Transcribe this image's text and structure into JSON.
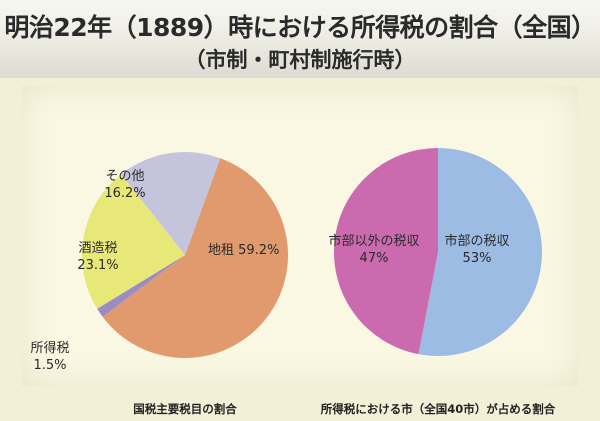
{
  "title": "明治22年（1889）時における所得税の割合（全国）",
  "subtitle": "（市制・町村制施行時）",
  "chart_data": [
    {
      "type": "pie",
      "caption": "国税主要税目の割合",
      "slices": [
        {
          "label": "地租",
          "value": 59.2,
          "display": "59.2%",
          "color": "#e09a6e"
        },
        {
          "label": "所得税",
          "value": 1.5,
          "display": "1.5%",
          "color": "#9c8cc4"
        },
        {
          "label": "酒造税",
          "value": 23.1,
          "display": "23.1%",
          "color": "#e8e878"
        },
        {
          "label": "その他",
          "value": 16.2,
          "display": "16.2%",
          "color": "#c5c4dd"
        }
      ]
    },
    {
      "type": "pie",
      "caption": "所得税における市（全国40市）が占める割合",
      "slices": [
        {
          "label": "市部の税収",
          "value": 53,
          "display": "53%",
          "color": "#9cbce4"
        },
        {
          "label": "市部以外の税収",
          "value": 47,
          "display": "47%",
          "color": "#cc6ab0"
        }
      ]
    }
  ]
}
